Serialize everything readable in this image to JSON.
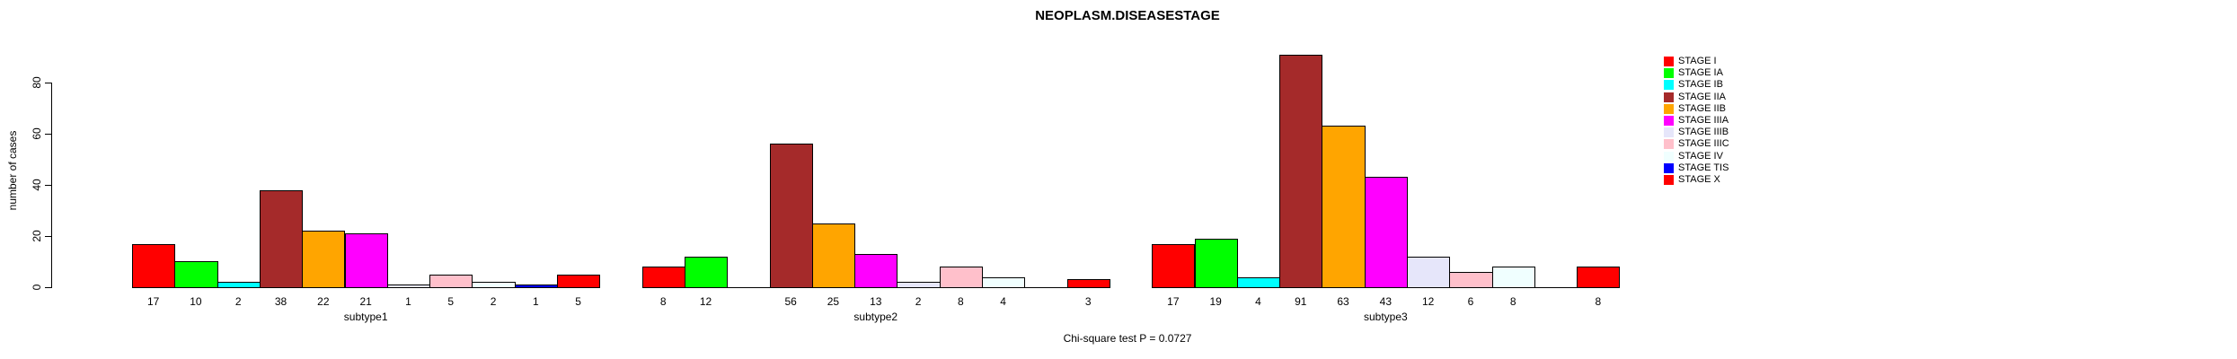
{
  "chart_data": {
    "type": "bar",
    "title": "NEOPLASM.DISEASESTAGE",
    "ylabel": "number of cases",
    "xlabel": "",
    "annotation": "Chi-square test P = 0.0727",
    "ylim": [
      0,
      80
    ],
    "yticks": [
      0,
      20,
      40,
      60,
      80
    ],
    "grid": false,
    "legend_position": "right",
    "stages": [
      {
        "label": "STAGE I",
        "color": "#FF0000"
      },
      {
        "label": "STAGE IA",
        "color": "#00FF00"
      },
      {
        "label": "STAGE IB",
        "color": "#00FFFF"
      },
      {
        "label": "STAGE IIA",
        "color": "#A52A2A"
      },
      {
        "label": "STAGE IIB",
        "color": "#FFA500"
      },
      {
        "label": "STAGE IIIA",
        "color": "#FF00FF"
      },
      {
        "label": "STAGE IIIB",
        "color": "#E6E6FA"
      },
      {
        "label": "STAGE IIIC",
        "color": "#FFC0CB"
      },
      {
        "label": "STAGE IV",
        "color": "#F0FFFF"
      },
      {
        "label": "STAGE TIS",
        "color": "#0000FF"
      },
      {
        "label": "STAGE X",
        "color": "#FF0000"
      }
    ],
    "groups": [
      {
        "label": "subtype1",
        "values": [
          17,
          10,
          2,
          38,
          22,
          21,
          1,
          5,
          2,
          1,
          5
        ]
      },
      {
        "label": "subtype2",
        "values": [
          8,
          12,
          0,
          56,
          25,
          13,
          2,
          8,
          4,
          0,
          3
        ]
      },
      {
        "label": "subtype3",
        "values": [
          17,
          19,
          4,
          91,
          63,
          43,
          12,
          6,
          8,
          0,
          8
        ]
      }
    ]
  }
}
